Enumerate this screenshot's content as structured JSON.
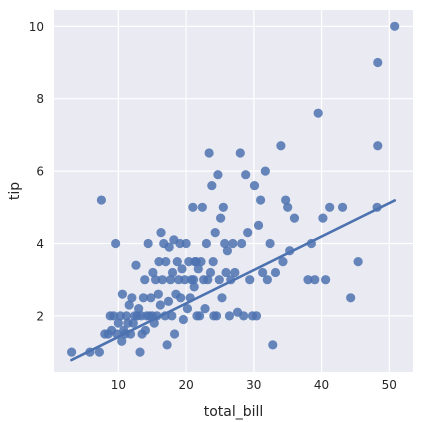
{
  "chart_data": {
    "type": "scatter",
    "title": "",
    "xlabel": "total_bill",
    "ylabel": "tip",
    "xlim": [
      0.5,
      53.5
    ],
    "ylim": [
      0.45,
      10.45
    ],
    "x_ticks": [
      10,
      20,
      30,
      40,
      50
    ],
    "y_ticks": [
      2,
      4,
      6,
      8,
      10
    ],
    "grid": true,
    "legend": "none",
    "colors": {
      "background": "#EAEAF2",
      "grid": "#FFFFFF",
      "points": "#4C72B0",
      "regression_line": "#4C72B0"
    },
    "points": [
      [
        3.1,
        1.0
      ],
      [
        5.8,
        1.0
      ],
      [
        7.2,
        1.0
      ],
      [
        7.5,
        5.2
      ],
      [
        8.0,
        1.5
      ],
      [
        8.5,
        1.5
      ],
      [
        8.8,
        2.0
      ],
      [
        9.0,
        1.6
      ],
      [
        9.3,
        2.0
      ],
      [
        9.6,
        4.0
      ],
      [
        9.8,
        1.5
      ],
      [
        10.0,
        1.8
      ],
      [
        10.3,
        2.0
      ],
      [
        10.5,
        1.3
      ],
      [
        10.6,
        2.6
      ],
      [
        10.8,
        1.6
      ],
      [
        11.0,
        1.5
      ],
      [
        11.2,
        2.0
      ],
      [
        11.4,
        1.8
      ],
      [
        11.6,
        2.3
      ],
      [
        11.8,
        1.5
      ],
      [
        12.0,
        2.5
      ],
      [
        12.2,
        1.8
      ],
      [
        12.4,
        2.0
      ],
      [
        12.6,
        3.4
      ],
      [
        12.8,
        2.0
      ],
      [
        13.0,
        2.2
      ],
      [
        13.2,
        1.0
      ],
      [
        13.4,
        2.0
      ],
      [
        13.5,
        1.5
      ],
      [
        13.7,
        2.5
      ],
      [
        13.9,
        3.0
      ],
      [
        14.0,
        1.6
      ],
      [
        14.2,
        2.0
      ],
      [
        14.4,
        4.0
      ],
      [
        14.6,
        2.0
      ],
      [
        14.8,
        2.5
      ],
      [
        15.0,
        2.0
      ],
      [
        15.1,
        3.2
      ],
      [
        15.3,
        1.8
      ],
      [
        15.5,
        3.0
      ],
      [
        15.7,
        2.0
      ],
      [
        15.9,
        2.6
      ],
      [
        16.0,
        3.5
      ],
      [
        16.2,
        2.3
      ],
      [
        16.3,
        4.3
      ],
      [
        16.5,
        3.0
      ],
      [
        16.7,
        4.0
      ],
      [
        16.9,
        2.0
      ],
      [
        17.0,
        3.5
      ],
      [
        17.2,
        1.2
      ],
      [
        17.4,
        2.4
      ],
      [
        17.5,
        3.9
      ],
      [
        17.7,
        3.0
      ],
      [
        17.9,
        2.0
      ],
      [
        18.0,
        3.2
      ],
      [
        18.2,
        4.1
      ],
      [
        18.3,
        1.5
      ],
      [
        18.5,
        2.6
      ],
      [
        18.7,
        3.5
      ],
      [
        18.9,
        3.0
      ],
      [
        19.1,
        4.0
      ],
      [
        19.2,
        2.5
      ],
      [
        19.4,
        3.3
      ],
      [
        19.6,
        1.9
      ],
      [
        19.8,
        3.0
      ],
      [
        20.0,
        4.0
      ],
      [
        20.2,
        2.2
      ],
      [
        20.4,
        3.5
      ],
      [
        20.6,
        2.5
      ],
      [
        20.8,
        3.0
      ],
      [
        21.0,
        5.0
      ],
      [
        21.1,
        3.0
      ],
      [
        21.2,
        2.8
      ],
      [
        21.3,
        3.5
      ],
      [
        21.5,
        3.5
      ],
      [
        21.6,
        2.0
      ],
      [
        21.8,
        3.3
      ],
      [
        22.0,
        2.0
      ],
      [
        22.2,
        3.5
      ],
      [
        22.4,
        5.0
      ],
      [
        22.6,
        3.0
      ],
      [
        22.8,
        2.2
      ],
      [
        23.0,
        4.0
      ],
      [
        23.2,
        3.0
      ],
      [
        23.4,
        6.5
      ],
      [
        23.6,
        3.2
      ],
      [
        23.8,
        5.6
      ],
      [
        24.0,
        3.5
      ],
      [
        24.1,
        2.0
      ],
      [
        24.3,
        4.3
      ],
      [
        24.5,
        2.0
      ],
      [
        24.7,
        5.9
      ],
      [
        24.9,
        3.0
      ],
      [
        25.1,
        4.7
      ],
      [
        25.3,
        2.5
      ],
      [
        25.5,
        5.0
      ],
      [
        25.7,
        4.0
      ],
      [
        25.9,
        3.2
      ],
      [
        26.1,
        3.8
      ],
      [
        26.4,
        2.0
      ],
      [
        26.6,
        3.0
      ],
      [
        26.9,
        4.0
      ],
      [
        27.2,
        3.2
      ],
      [
        27.6,
        2.1
      ],
      [
        28.0,
        6.5
      ],
      [
        28.2,
        4.0
      ],
      [
        28.5,
        2.0
      ],
      [
        28.8,
        5.9
      ],
      [
        29.1,
        4.3
      ],
      [
        29.4,
        3.0
      ],
      [
        29.8,
        2.0
      ],
      [
        30.1,
        5.6
      ],
      [
        30.4,
        2.0
      ],
      [
        30.7,
        4.5
      ],
      [
        31.0,
        5.2
      ],
      [
        31.3,
        3.2
      ],
      [
        31.7,
        6.0
      ],
      [
        32.0,
        3.0
      ],
      [
        32.4,
        4.0
      ],
      [
        32.8,
        1.2
      ],
      [
        33.2,
        3.2
      ],
      [
        34.0,
        6.7
      ],
      [
        34.3,
        3.5
      ],
      [
        34.7,
        5.2
      ],
      [
        35.0,
        5.0
      ],
      [
        35.3,
        3.8
      ],
      [
        36.0,
        4.7
      ],
      [
        38.0,
        3.0
      ],
      [
        38.5,
        4.0
      ],
      [
        39.0,
        3.0
      ],
      [
        39.5,
        7.6
      ],
      [
        40.2,
        4.7
      ],
      [
        40.6,
        3.0
      ],
      [
        41.2,
        5.0
      ],
      [
        43.1,
        5.0
      ],
      [
        44.3,
        2.5
      ],
      [
        45.4,
        3.5
      ],
      [
        48.2,
        5.0
      ],
      [
        48.3,
        9.0
      ],
      [
        48.3,
        6.7
      ],
      [
        50.8,
        10.0
      ]
    ],
    "regression_line": {
      "x": [
        3.07,
        50.81
      ],
      "y": [
        0.78,
        5.19
      ]
    }
  }
}
